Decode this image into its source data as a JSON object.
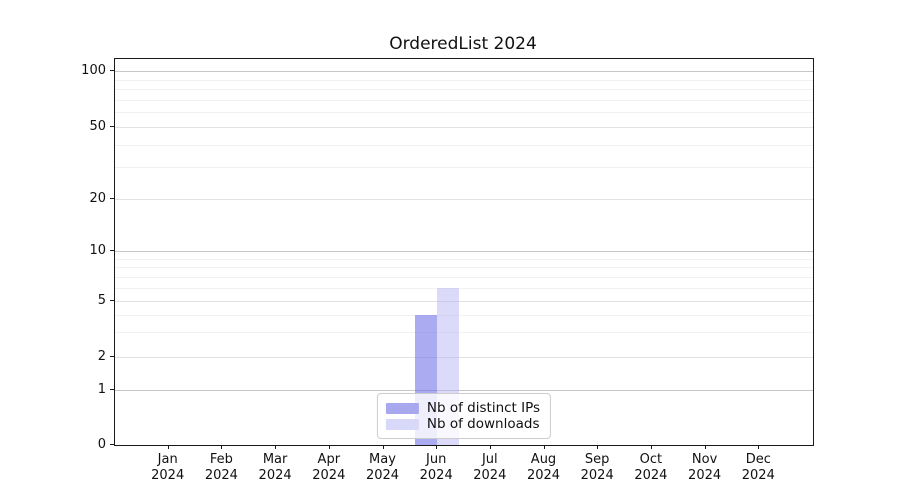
{
  "figure": {
    "title": "OrderedList 2024"
  },
  "chart_data": {
    "type": "bar",
    "title": "OrderedList 2024",
    "categories": [
      "Jan",
      "Feb",
      "Mar",
      "Apr",
      "May",
      "Jun",
      "Jul",
      "Aug",
      "Sep",
      "Oct",
      "Nov",
      "Dec"
    ],
    "category_year": "2024",
    "series": [
      {
        "name": "Nb of distinct IPs",
        "color": "#a8a8ee",
        "fill": "rgba(110,110,232,0.58)",
        "values": [
          0,
          0,
          0,
          0,
          0,
          4,
          0,
          0,
          0,
          0,
          0,
          0
        ]
      },
      {
        "name": "Nb of downloads",
        "color": "#d8d8f8",
        "fill": "rgba(175,175,242,0.45)",
        "values": [
          0,
          0,
          0,
          0,
          0,
          6,
          0,
          0,
          0,
          0,
          0,
          0
        ]
      }
    ],
    "xlabel": "",
    "ylabel": "",
    "yticks": [
      0,
      1,
      2,
      5,
      10,
      20,
      50,
      100
    ],
    "minor_yticks": [
      3,
      4,
      6,
      7,
      8,
      9,
      30,
      40,
      60,
      70,
      80,
      90
    ],
    "ylim": [
      0,
      110
    ],
    "yscale": "symlog",
    "grid": true,
    "legend_position": "lower center"
  }
}
